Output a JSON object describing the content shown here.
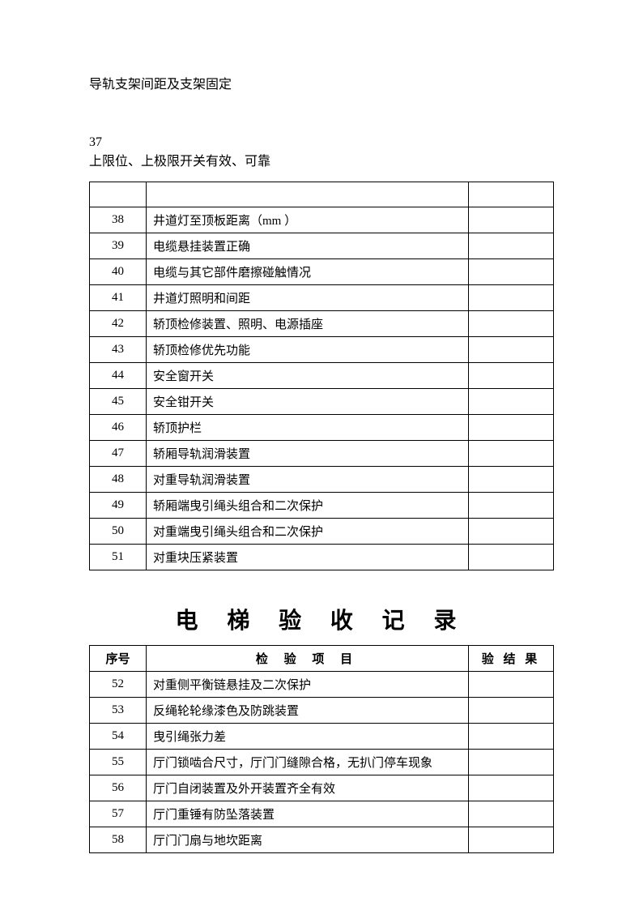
{
  "page": {
    "background_color": "#ffffff",
    "text_color": "#000000",
    "border_color": "#000000"
  },
  "header_text": "导轨支架间距及支架固定",
  "item_37": {
    "number": "37",
    "description": "上限位、上极限开关有效、可靠"
  },
  "table1": {
    "columns": {
      "num_width": 70,
      "result_width": 105
    },
    "rows": [
      {
        "num": "38",
        "desc": "井道灯至顶板距离（mm ）",
        "result": ""
      },
      {
        "num": "39",
        "desc": "电缆悬挂装置正确",
        "result": ""
      },
      {
        "num": "40",
        "desc": "电缆与其它部件磨擦碰触情况",
        "result": ""
      },
      {
        "num": "41",
        "desc": "井道灯照明和间距",
        "result": ""
      },
      {
        "num": "42",
        "desc": "轿顶检修装置、照明、电源插座",
        "result": ""
      },
      {
        "num": "43",
        "desc": "轿顶检修优先功能",
        "result": ""
      },
      {
        "num": "44",
        "desc": "安全窗开关",
        "result": ""
      },
      {
        "num": "45",
        "desc": "安全钳开关",
        "result": ""
      },
      {
        "num": "46",
        "desc": "轿顶护栏",
        "result": ""
      },
      {
        "num": "47",
        "desc": "轿厢导轨润滑装置",
        "result": ""
      },
      {
        "num": "48",
        "desc": "对重导轨润滑装置",
        "result": ""
      },
      {
        "num": "49",
        "desc": "轿厢端曳引绳头组合和二次保护",
        "result": ""
      },
      {
        "num": "50",
        "desc": "对重端曳引绳头组合和二次保护",
        "result": ""
      },
      {
        "num": "51",
        "desc": "对重块压紧装置",
        "result": ""
      }
    ]
  },
  "section_title": "电 梯 验 收 记 录",
  "table2": {
    "headers": {
      "num": "序号",
      "desc": "检 验 项 目",
      "result": "验 结 果"
    },
    "columns": {
      "num_width": 70,
      "result_width": 105
    },
    "rows": [
      {
        "num": "52",
        "desc": "对重侧平衡链悬挂及二次保护",
        "result": ""
      },
      {
        "num": "53",
        "desc": "反绳轮轮缘漆色及防跳装置",
        "result": ""
      },
      {
        "num": "54",
        "desc": "曳引绳张力差",
        "result": ""
      },
      {
        "num": "55",
        "desc": "厅门锁啮合尺寸，厅门门缝隙合格，无扒门停车现象",
        "result": ""
      },
      {
        "num": "56",
        "desc": "厅门自闭装置及外开装置齐全有效",
        "result": ""
      },
      {
        "num": "57",
        "desc": "厅门重锤有防坠落装置",
        "result": ""
      },
      {
        "num": "58",
        "desc": "厅门门扇与地坎距离",
        "result": ""
      }
    ]
  }
}
